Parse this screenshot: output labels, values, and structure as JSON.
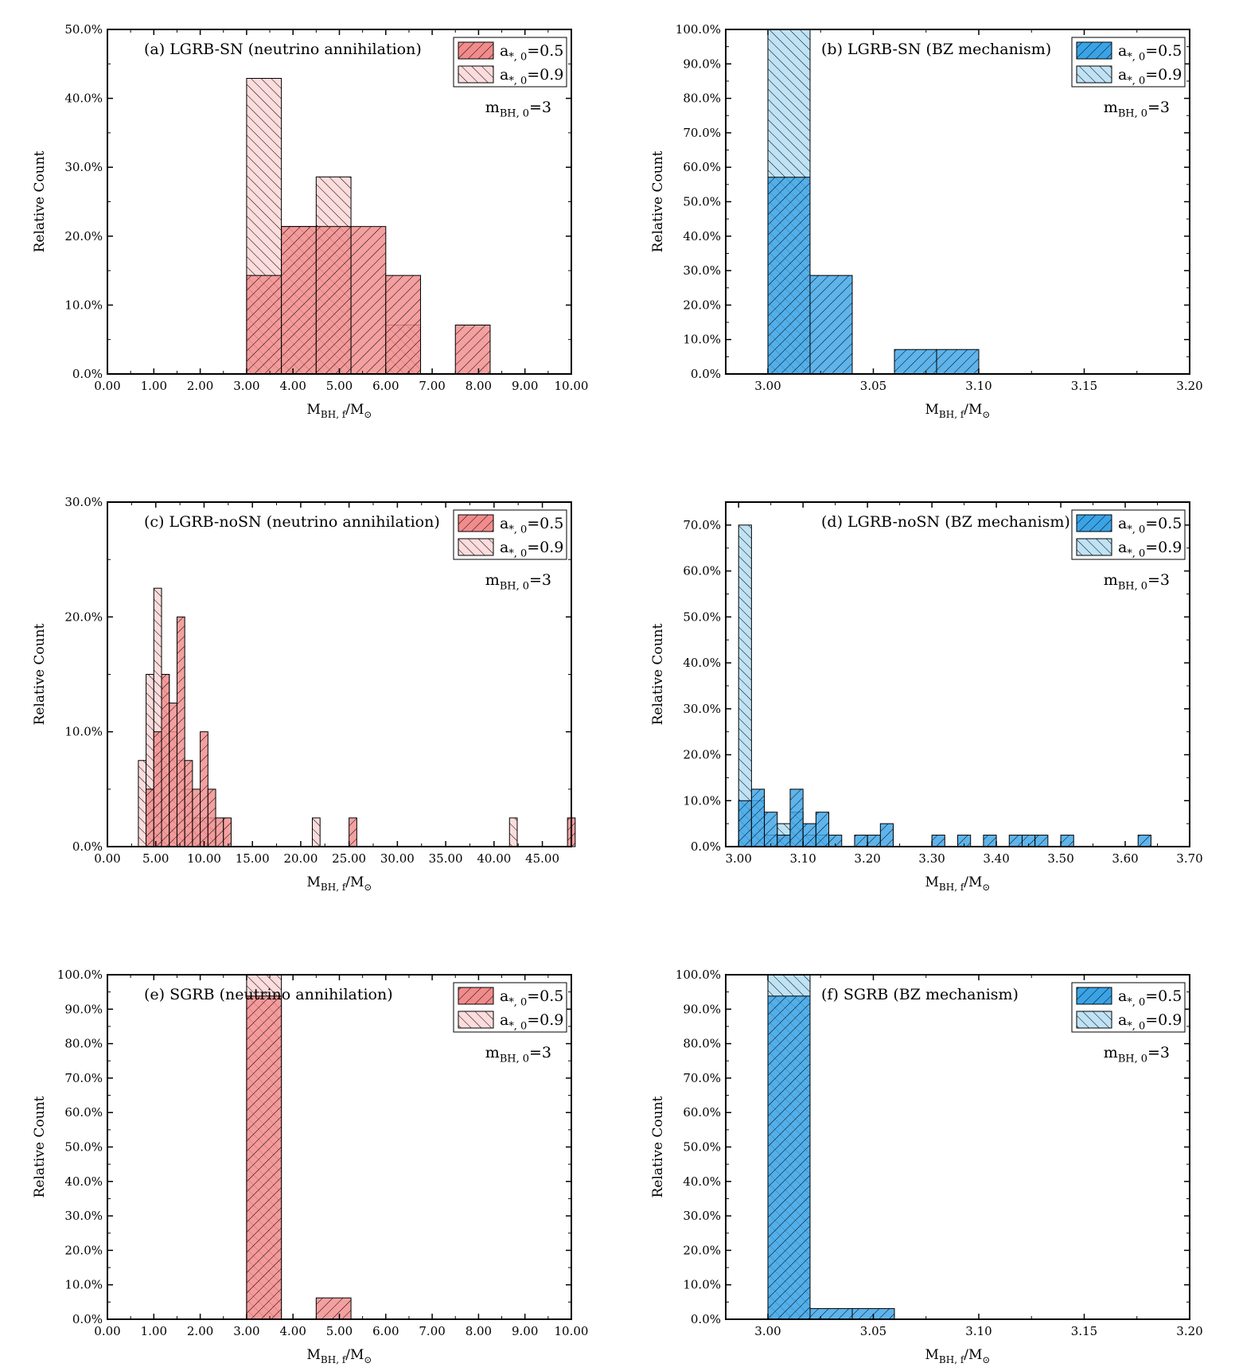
{
  "colors": {
    "red_fill": "#f28b8b",
    "red_light_fill": "#fcdcdc",
    "blue_fill": "#3aa3e6",
    "blue_light_fill": "#bfe2f5"
  },
  "common": {
    "ylabel": "Relative Count",
    "xlabel_main": "M",
    "xlabel_sub": "BH, f",
    "xlabel_tail": "/M",
    "sun_symbol": "⊙",
    "m0_main": "m",
    "m0_sub": "BH, 0",
    "m0_tail": "=3"
  },
  "chart_data": [
    {
      "id": "a",
      "type": "histogram",
      "title": "(a)  LGRB-SN  (neutrino annihilation)",
      "color_scheme": "red",
      "xlim": [
        0,
        10
      ],
      "ylim": [
        0,
        50
      ],
      "xticks": [
        "0.00",
        "1.00",
        "2.00",
        "3.00",
        "4.00",
        "5.00",
        "6.00",
        "7.00",
        "8.00",
        "9.00",
        "10.00"
      ],
      "xtick_values": [
        0,
        1,
        2,
        3,
        4,
        5,
        6,
        7,
        8,
        9,
        10
      ],
      "yticks": [
        "0.0%",
        "10.0%",
        "20.0%",
        "30.0%",
        "40.0%",
        "50.0%"
      ],
      "ytick_values": [
        0,
        10,
        20,
        30,
        40,
        50
      ],
      "legend": [
        {
          "main": "a",
          "sub": "*, 0",
          "tail": "=0.5"
        },
        {
          "main": "a",
          "sub": "*, 0",
          "tail": "=0.9"
        }
      ],
      "series": [
        {
          "name": "a*,0=0.5",
          "bin_width": 0.75,
          "bins": [
            [
              3.0,
              14.3
            ],
            [
              3.75,
              21.4
            ],
            [
              4.5,
              21.4
            ],
            [
              5.25,
              21.4
            ],
            [
              6.0,
              14.3
            ],
            [
              7.5,
              7.1
            ]
          ]
        },
        {
          "name": "a*,0=0.9",
          "bin_width": 0.75,
          "bins": [
            [
              3.0,
              42.9
            ],
            [
              3.75,
              21.4
            ],
            [
              4.5,
              28.6
            ],
            [
              5.25,
              0
            ],
            [
              6.0,
              7.1
            ]
          ]
        }
      ]
    },
    {
      "id": "b",
      "type": "histogram",
      "title": "(b)  LGRB-SN  (BZ mechanism)",
      "color_scheme": "blue",
      "xlim": [
        2.98,
        3.2
      ],
      "ylim": [
        0,
        100
      ],
      "xticks": [
        "3.00",
        "3.05",
        "3.10",
        "3.15",
        "3.20"
      ],
      "xtick_values": [
        3.0,
        3.05,
        3.1,
        3.15,
        3.2
      ],
      "yticks": [
        "0.0%",
        "10.0%",
        "20.0%",
        "30.0%",
        "40.0%",
        "50.0%",
        "60.0%",
        "70.0%",
        "80.0%",
        "90.0%",
        "100.0%"
      ],
      "ytick_values": [
        0,
        10,
        20,
        30,
        40,
        50,
        60,
        70,
        80,
        90,
        100
      ],
      "legend": [
        {
          "main": "a",
          "sub": "*, 0",
          "tail": "=0.5"
        },
        {
          "main": "a",
          "sub": "*, 0",
          "tail": "=0.9"
        }
      ],
      "series": [
        {
          "name": "a*,0=0.5",
          "bin_width": 0.02,
          "bins": [
            [
              3.0,
              57.1
            ],
            [
              3.02,
              28.6
            ],
            [
              3.06,
              7.1
            ],
            [
              3.08,
              7.1
            ]
          ]
        },
        {
          "name": "a*,0=0.9",
          "bin_width": 0.02,
          "bins": [
            [
              3.0,
              100
            ]
          ]
        }
      ]
    },
    {
      "id": "c",
      "type": "histogram",
      "title": "(c)  LGRB-noSN  (neutrino annihilation)",
      "color_scheme": "red",
      "xlim": [
        0,
        48
      ],
      "ylim": [
        0,
        30
      ],
      "xticks": [
        "0.00",
        "5.00",
        "10.00",
        "15.00",
        "20.00",
        "25.00",
        "30.00",
        "35.00",
        "40.00",
        "45.00"
      ],
      "xtick_values": [
        0,
        5,
        10,
        15,
        20,
        25,
        30,
        35,
        40,
        45
      ],
      "yticks": [
        "0.0%",
        "10.0%",
        "20.0%",
        "30.0%"
      ],
      "ytick_values": [
        0,
        10,
        20,
        30
      ],
      "legend": [
        {
          "main": "a",
          "sub": "*, 0",
          "tail": "=0.5"
        },
        {
          "main": "a",
          "sub": "*, 0",
          "tail": "=0.9"
        }
      ],
      "series": [
        {
          "name": "a*,0=0.5",
          "bin_width": 0.8,
          "bins": [
            [
              4.0,
              5.0
            ],
            [
              4.8,
              10.0
            ],
            [
              5.6,
              15.0
            ],
            [
              6.4,
              12.5
            ],
            [
              7.2,
              20.0
            ],
            [
              8.0,
              7.5
            ],
            [
              8.8,
              5.0
            ],
            [
              9.6,
              10.0
            ],
            [
              10.4,
              5.0
            ],
            [
              11.2,
              2.5
            ],
            [
              12.0,
              2.5
            ],
            [
              25.0,
              2.5
            ],
            [
              47.6,
              2.5
            ]
          ]
        },
        {
          "name": "a*,0=0.9",
          "bin_width": 0.8,
          "bins": [
            [
              3.2,
              7.5
            ],
            [
              4.0,
              15.0
            ],
            [
              4.8,
              22.5
            ],
            [
              5.6,
              15.0
            ],
            [
              6.4,
              10.0
            ],
            [
              7.2,
              7.5
            ],
            [
              8.0,
              5.0
            ],
            [
              8.8,
              2.5
            ],
            [
              9.6,
              2.5
            ],
            [
              10.4,
              2.5
            ],
            [
              21.2,
              2.5
            ],
            [
              41.6,
              2.5
            ]
          ]
        }
      ]
    },
    {
      "id": "d",
      "type": "histogram",
      "title": "(d)  LGRB-noSN  (BZ mechanism)",
      "color_scheme": "blue",
      "xlim": [
        2.98,
        3.7
      ],
      "ylim": [
        0,
        75
      ],
      "xticks": [
        "3.00",
        "3.10",
        "3.20",
        "3.30",
        "3.40",
        "3.50",
        "3.60",
        "3.70"
      ],
      "xtick_values": [
        3.0,
        3.1,
        3.2,
        3.3,
        3.4,
        3.5,
        3.6,
        3.7
      ],
      "yticks": [
        "0.0%",
        "10.0%",
        "20.0%",
        "30.0%",
        "40.0%",
        "50.0%",
        "60.0%",
        "70.0%"
      ],
      "ytick_values": [
        0,
        10,
        20,
        30,
        40,
        50,
        60,
        70
      ],
      "legend": [
        {
          "main": "a",
          "sub": "*, 0",
          "tail": "=0.5"
        },
        {
          "main": "a",
          "sub": "*, 0",
          "tail": "=0.9"
        }
      ],
      "series": [
        {
          "name": "a*,0=0.5",
          "bin_width": 0.02,
          "bins": [
            [
              3.0,
              10.0
            ],
            [
              3.02,
              12.5
            ],
            [
              3.04,
              7.5
            ],
            [
              3.06,
              2.5
            ],
            [
              3.08,
              12.5
            ],
            [
              3.1,
              5.0
            ],
            [
              3.12,
              7.5
            ],
            [
              3.14,
              2.5
            ],
            [
              3.18,
              2.5
            ],
            [
              3.2,
              2.5
            ],
            [
              3.22,
              5.0
            ],
            [
              3.3,
              2.5
            ],
            [
              3.34,
              2.5
            ],
            [
              3.38,
              2.5
            ],
            [
              3.42,
              2.5
            ],
            [
              3.44,
              2.5
            ],
            [
              3.46,
              2.5
            ],
            [
              3.5,
              2.5
            ],
            [
              3.62,
              2.5
            ]
          ]
        },
        {
          "name": "a*,0=0.9",
          "bin_width": 0.02,
          "bins": [
            [
              3.0,
              70.0
            ],
            [
              3.02,
              10.0
            ],
            [
              3.04,
              2.5
            ],
            [
              3.06,
              5.0
            ],
            [
              3.08,
              7.5
            ],
            [
              3.1,
              2.5
            ],
            [
              3.12,
              2.5
            ]
          ]
        }
      ]
    },
    {
      "id": "e",
      "type": "histogram",
      "title": "(e)  SGRB  (neutrino annihilation)",
      "color_scheme": "red",
      "xlim": [
        0,
        10
      ],
      "ylim": [
        0,
        100
      ],
      "xticks": [
        "0.00",
        "1.00",
        "2.00",
        "3.00",
        "4.00",
        "5.00",
        "6.00",
        "7.00",
        "8.00",
        "9.00",
        "10.00"
      ],
      "xtick_values": [
        0,
        1,
        2,
        3,
        4,
        5,
        6,
        7,
        8,
        9,
        10
      ],
      "yticks": [
        "0.0%",
        "10.0%",
        "20.0%",
        "30.0%",
        "40.0%",
        "50.0%",
        "60.0%",
        "70.0%",
        "80.0%",
        "90.0%",
        "100.0%"
      ],
      "ytick_values": [
        0,
        10,
        20,
        30,
        40,
        50,
        60,
        70,
        80,
        90,
        100
      ],
      "legend": [
        {
          "main": "a",
          "sub": "*, 0",
          "tail": "=0.5"
        },
        {
          "main": "a",
          "sub": "*, 0",
          "tail": "=0.9"
        }
      ],
      "series": [
        {
          "name": "a*,0=0.5",
          "bin_width": 0.75,
          "bins": [
            [
              3.0,
              93.8
            ],
            [
              4.5,
              6.2
            ]
          ]
        },
        {
          "name": "a*,0=0.9",
          "bin_width": 0.75,
          "bins": [
            [
              3.0,
              100
            ]
          ]
        }
      ]
    },
    {
      "id": "f",
      "type": "histogram",
      "title": "(f)  SGRB  (BZ mechanism)",
      "color_scheme": "blue",
      "xlim": [
        2.98,
        3.2
      ],
      "ylim": [
        0,
        100
      ],
      "xticks": [
        "3.00",
        "3.05",
        "3.10",
        "3.15",
        "3.20"
      ],
      "xtick_values": [
        3.0,
        3.05,
        3.1,
        3.15,
        3.2
      ],
      "yticks": [
        "0.0%",
        "10.0%",
        "20.0%",
        "30.0%",
        "40.0%",
        "50.0%",
        "60.0%",
        "70.0%",
        "80.0%",
        "90.0%",
        "100.0%"
      ],
      "ytick_values": [
        0,
        10,
        20,
        30,
        40,
        50,
        60,
        70,
        80,
        90,
        100
      ],
      "legend": [
        {
          "main": "a",
          "sub": "*, 0",
          "tail": "=0.5"
        },
        {
          "main": "a",
          "sub": "*, 0",
          "tail": "=0.9"
        }
      ],
      "series": [
        {
          "name": "a*,0=0.5",
          "bin_width": 0.02,
          "bins": [
            [
              3.0,
              93.8
            ],
            [
              3.02,
              3.1
            ],
            [
              3.04,
              3.1
            ]
          ]
        },
        {
          "name": "a*,0=0.9",
          "bin_width": 0.02,
          "bins": [
            [
              3.0,
              100
            ]
          ]
        }
      ]
    }
  ]
}
